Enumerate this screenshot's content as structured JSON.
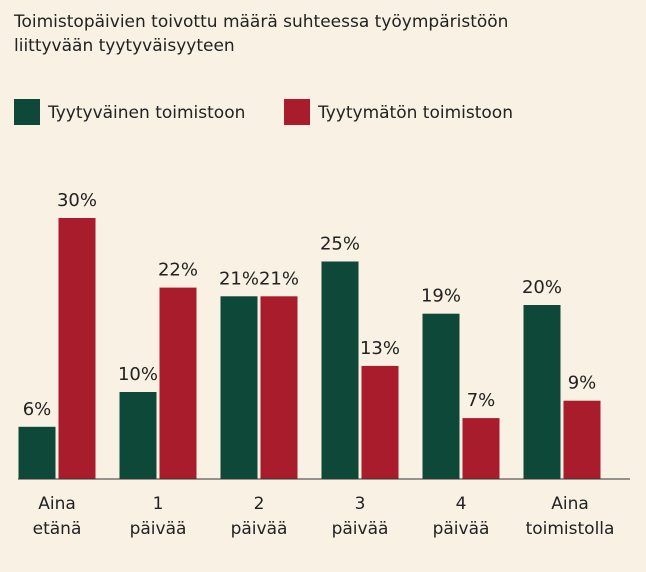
{
  "chart_data": {
    "type": "bar",
    "title": [
      "Toimistopäivien toivottu määrä suhteessa työympäristöön",
      "liittyvään tyytyväisyyteen"
    ],
    "categories": [
      "Aina etänä",
      "1 päivää",
      "2 päivää",
      "3 päivää",
      "4 päivää",
      "Aina toimistolla"
    ],
    "series": [
      {
        "name": "Tyytyväinen toimistoon",
        "color": "#0e4838",
        "values": [
          6,
          10,
          21,
          25,
          19,
          20
        ],
        "value_labels": [
          "6%",
          "10%",
          "21%",
          "25%",
          "19%",
          "20%"
        ]
      },
      {
        "name": "Tyytymätön toimistoon",
        "color": "#a81c2b",
        "values": [
          30,
          22,
          21,
          13,
          7,
          9
        ],
        "value_labels": [
          "30%",
          "22%",
          "21%",
          "13%",
          "7%",
          "9%"
        ]
      }
    ]
  }
}
